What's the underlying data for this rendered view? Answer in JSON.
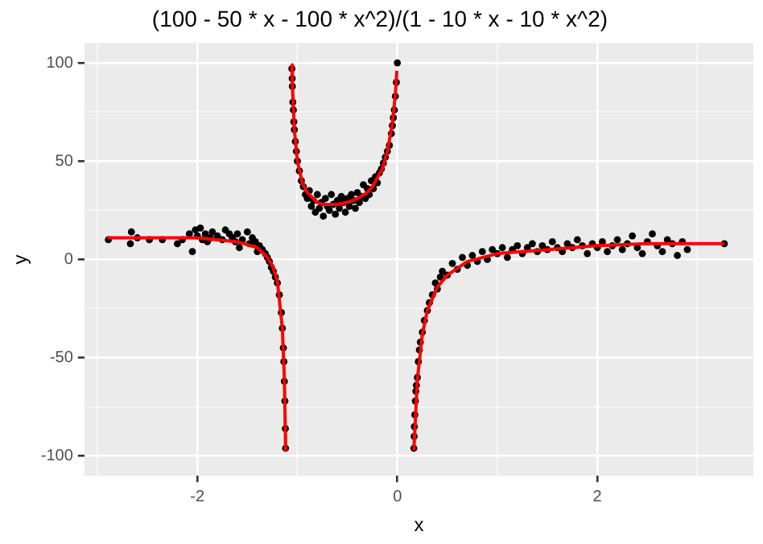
{
  "chart_data": {
    "type": "scatter",
    "title": "(100 - 50 * x - 100 * x^2)/(1 - 10 * x - 10 * x^2)",
    "xlabel": "x",
    "ylabel": "y",
    "xlim": [
      -3.13,
      3.56
    ],
    "ylim": [
      -110,
      110
    ],
    "xticks": [
      {
        "value": -3,
        "label": null
      },
      -2,
      {
        "value": -1,
        "label": null
      },
      0,
      {
        "value": 1,
        "label": null
      },
      2,
      {
        "value": 3,
        "label": null
      }
    ],
    "yticks": [
      -100,
      {
        "value": -75,
        "label": null
      },
      -50,
      {
        "value": -25,
        "label": null
      },
      0,
      {
        "value": 25,
        "label": null
      },
      50,
      {
        "value": 75,
        "label": null
      },
      100
    ],
    "grid": true,
    "legend": false,
    "series": [
      {
        "color": "#000000",
        "marker": "circle",
        "x": [
          -2.89,
          -2.66,
          -2.67,
          -2.6,
          -2.48,
          -2.35,
          -2.2,
          -2.15,
          -2.08,
          -2.05,
          -2.02,
          -2.0,
          -1.97,
          -1.95,
          -1.92,
          -1.9,
          -1.87,
          -1.85,
          -1.8,
          -1.75,
          -1.72,
          -1.68,
          -1.65,
          -1.62,
          -1.6,
          -1.58,
          -1.55,
          -1.5,
          -1.48,
          -1.45,
          -1.42,
          -1.4,
          -1.38,
          -1.35,
          -1.32,
          -1.3,
          -1.28,
          -1.26,
          -1.24,
          -1.22,
          -1.2,
          -1.18,
          -1.16,
          -1.15,
          -1.14,
          -1.135,
          -1.13,
          -1.125,
          -1.12,
          -1.118,
          -1.055,
          -1.052,
          -1.05,
          -1.045,
          -1.04,
          -1.035,
          -1.03,
          -1.02,
          -1.01,
          -1.0,
          -0.98,
          -0.96,
          -0.94,
          -0.92,
          -0.9,
          -0.88,
          -0.86,
          -0.84,
          -0.82,
          -0.8,
          -0.78,
          -0.76,
          -0.74,
          -0.72,
          -0.7,
          -0.68,
          -0.66,
          -0.64,
          -0.62,
          -0.6,
          -0.58,
          -0.56,
          -0.54,
          -0.52,
          -0.5,
          -0.48,
          -0.46,
          -0.44,
          -0.42,
          -0.4,
          -0.38,
          -0.36,
          -0.34,
          -0.32,
          -0.3,
          -0.28,
          -0.26,
          -0.24,
          -0.22,
          -0.2,
          -0.18,
          -0.16,
          -0.14,
          -0.12,
          -0.1,
          -0.08,
          -0.06,
          -0.05,
          -0.04,
          -0.03,
          -0.02,
          -0.01,
          0.0,
          0.165,
          0.168,
          0.17,
          0.175,
          0.18,
          0.185,
          0.19,
          0.2,
          0.21,
          0.22,
          0.23,
          0.25,
          0.27,
          0.3,
          0.32,
          0.35,
          0.38,
          0.4,
          0.43,
          0.45,
          0.5,
          0.55,
          0.6,
          0.65,
          0.7,
          0.75,
          0.8,
          0.85,
          0.9,
          0.95,
          1.0,
          1.05,
          1.1,
          1.15,
          1.2,
          1.25,
          1.3,
          1.35,
          1.4,
          1.45,
          1.5,
          1.55,
          1.6,
          1.65,
          1.7,
          1.75,
          1.8,
          1.85,
          1.9,
          1.95,
          2.0,
          2.05,
          2.1,
          2.15,
          2.2,
          2.25,
          2.3,
          2.35,
          2.4,
          2.45,
          2.5,
          2.55,
          2.6,
          2.65,
          2.7,
          2.75,
          2.8,
          2.85,
          2.9,
          3.27
        ],
        "values": [
          10,
          14,
          8,
          11,
          10,
          10,
          8,
          10,
          13,
          4,
          15,
          12,
          16,
          10,
          13,
          9,
          11,
          14,
          12,
          10,
          15,
          13,
          11,
          9,
          13,
          6,
          10,
          14,
          8,
          11,
          9,
          4,
          7,
          5,
          3,
          1,
          -1,
          -4,
          -6,
          -9,
          -12,
          -18,
          -27,
          -35,
          -45,
          -52,
          -62,
          -72,
          -86,
          -96,
          97,
          92,
          88,
          80,
          76,
          70,
          66,
          60,
          55,
          50,
          45,
          40,
          37,
          33,
          31,
          35,
          27,
          30,
          24,
          33,
          26,
          29,
          22,
          31,
          27,
          25,
          33,
          28,
          23,
          30,
          26,
          32,
          29,
          24,
          31,
          27,
          33,
          30,
          26,
          34,
          29,
          32,
          38,
          31,
          36,
          33,
          40,
          36,
          42,
          39,
          44,
          46,
          49,
          52,
          55,
          58,
          64,
          68,
          72,
          76,
          83,
          90,
          100,
          -96,
          -90,
          -85,
          -79,
          -72,
          -67,
          -64,
          -60,
          -52,
          -46,
          -42,
          -37,
          -31,
          -26,
          -22,
          -18,
          -12,
          -15,
          -9,
          -6,
          -8,
          -2,
          -5,
          1,
          -3,
          2,
          -1,
          4,
          0,
          5,
          3,
          6,
          1,
          5,
          7,
          3,
          6,
          8,
          4,
          7,
          5,
          9,
          6,
          4,
          8,
          6,
          10,
          7,
          3,
          8,
          6,
          9,
          4,
          7,
          10,
          5,
          8,
          12,
          6,
          3,
          9,
          13,
          7,
          4,
          10,
          8,
          2,
          9,
          5,
          8
        ]
      },
      {
        "type": "line",
        "color": "#ff0000",
        "marker": "none",
        "x": [
          -2.9,
          -2.5,
          -2.0,
          -1.6,
          -1.4,
          -1.3,
          -1.25,
          -1.2,
          -1.15,
          -1.13,
          -1.12,
          -1.118,
          -1.09,
          -1.055,
          -1.05,
          -1.03,
          -1.0,
          -0.95,
          -0.9,
          -0.8,
          -0.75,
          -0.6,
          -0.5,
          -0.4,
          -0.3,
          -0.25,
          -0.15,
          -0.1,
          -0.05,
          -0.02,
          -0.005,
          0.09,
          0.165,
          0.2,
          0.25,
          0.3,
          0.4,
          0.5,
          0.7,
          1.0,
          1.5,
          2.0,
          2.5,
          3.27
        ],
        "values": [
          11,
          11,
          11,
          9,
          6,
          1,
          -3,
          -11,
          -35,
          -61,
          -89,
          -97,
          null,
          99,
          89,
          66,
          50,
          39,
          34,
          29,
          28,
          28,
          29,
          31,
          34,
          37,
          46,
          55,
          69,
          84,
          96,
          null,
          -97,
          -61,
          -38,
          -26,
          -14,
          -8,
          -1,
          3,
          5,
          7,
          8,
          8
        ]
      }
    ]
  }
}
